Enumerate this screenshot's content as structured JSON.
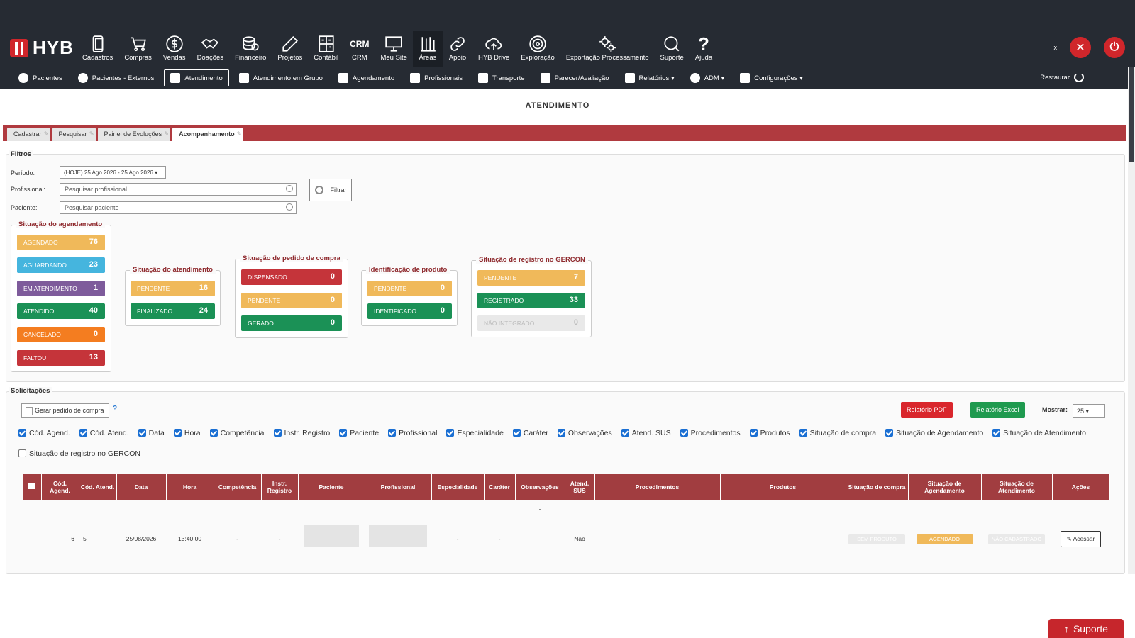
{
  "app": {
    "logo": "HYB"
  },
  "modules": [
    {
      "label": "Cadastros",
      "icon": "phone-icon"
    },
    {
      "label": "Compras",
      "icon": "cart-icon"
    },
    {
      "label": "Vendas",
      "icon": "dollar-icon"
    },
    {
      "label": "Doações",
      "icon": "handshake-icon"
    },
    {
      "label": "Financeiro",
      "icon": "coins-icon"
    },
    {
      "label": "Projetos",
      "icon": "pencil-icon"
    },
    {
      "label": "Contábil",
      "icon": "calculator-icon"
    },
    {
      "label": "CRM",
      "icon": "crm-text"
    },
    {
      "label": "Meu Site",
      "icon": "monitor-icon"
    },
    {
      "label": "Áreas",
      "icon": "areas-icon"
    },
    {
      "label": "Apoio",
      "icon": "link-icon"
    },
    {
      "label": "HYB Drive",
      "icon": "cloud-upload-icon"
    },
    {
      "label": "Exploração",
      "icon": "target-icon"
    },
    {
      "label": "Exportação Processamento",
      "icon": "gears-icon"
    },
    {
      "label": "Suporte",
      "icon": "chat-icon"
    },
    {
      "label": "Ajuda",
      "icon": "question-icon"
    }
  ],
  "top_right": {
    "tiny": "x"
  },
  "subnav": [
    {
      "label": "Pacientes"
    },
    {
      "label": "Pacientes - Externos"
    },
    {
      "label": "Atendimento",
      "active": true
    },
    {
      "label": "Atendimento em Grupo"
    },
    {
      "label": "Agendamento"
    },
    {
      "label": "Profissionais"
    },
    {
      "label": "Transporte"
    },
    {
      "label": "Parecer/Avaliação"
    },
    {
      "label": "Relatórios ▾"
    },
    {
      "label": "ADM ▾"
    },
    {
      "label": "Configurações ▾"
    }
  ],
  "restore": "Restaurar",
  "page_title": "ATENDIMENTO",
  "tabs": [
    "Cadastrar",
    "Pesquisar",
    "Painel de Evoluções",
    "Acompanhamento"
  ],
  "filters": {
    "legend": "Filtros",
    "periodo_label": "Período:",
    "periodo_value": "(HOJE) 25 Ago 2026 - 25 Ago 2026 ▾",
    "profissional_label": "Profissional:",
    "profissional_placeholder": "Pesquisar profissional",
    "paciente_label": "Paciente:",
    "paciente_placeholder": "Pesquisar paciente",
    "filtrar": "Filtrar"
  },
  "situacao_agendamento": {
    "title": "Situação do agendamento",
    "items": [
      {
        "label": "AGENDADO",
        "count": "76",
        "color": "#f0b95a"
      },
      {
        "label": "AGUARDANDO",
        "count": "23",
        "color": "#45b5de"
      },
      {
        "label": "EM ATENDIMENTO",
        "count": "1",
        "color": "#7e5b9b"
      },
      {
        "label": "ATENDIDO",
        "count": "40",
        "color": "#1b9156"
      },
      {
        "label": "CANCELADO",
        "count": "0",
        "color": "#f47d20"
      },
      {
        "label": "FALTOU",
        "count": "13",
        "color": "#c5343a"
      }
    ]
  },
  "situacao_atendimento": {
    "title": "Situação do atendimento",
    "items": [
      {
        "label": "PENDENTE",
        "count": "16"
      },
      {
        "label": "FINALIZADO",
        "count": "24"
      }
    ]
  },
  "situacao_pedido": {
    "title": "Situação de pedido de compra",
    "items": [
      {
        "label": "DISPENSADO",
        "count": "0"
      },
      {
        "label": "PENDENTE",
        "count": "0"
      },
      {
        "label": "GERADO",
        "count": "0"
      }
    ]
  },
  "identificacao_produto": {
    "title": "Identificação de produto",
    "items": [
      {
        "label": "PENDENTE",
        "count": "0"
      },
      {
        "label": "IDENTIFICADO",
        "count": "0"
      }
    ]
  },
  "situacao_gercon": {
    "title": "Situação de registro no GERCON",
    "items": [
      {
        "label": "PENDENTE",
        "count": "7"
      },
      {
        "label": "REGISTRADO",
        "count": "33"
      },
      {
        "label": "NÃO INTEGRADO",
        "count": "0"
      }
    ]
  },
  "solicitacoes": {
    "legend": "Solicitações",
    "gerar": "Gerar pedido de compra",
    "help": "?",
    "pdf": "Relatório PDF",
    "excel": "Relatório Excel",
    "mostrar_label": "Mostrar:",
    "mostrar_value": "25 ▾"
  },
  "columns_toggle": [
    {
      "label": "Cód. Agend.",
      "checked": true
    },
    {
      "label": "Cód. Atend.",
      "checked": true
    },
    {
      "label": "Data",
      "checked": true
    },
    {
      "label": "Hora",
      "checked": true
    },
    {
      "label": "Competência",
      "checked": true
    },
    {
      "label": "Instr. Registro",
      "checked": true
    },
    {
      "label": "Paciente",
      "checked": true
    },
    {
      "label": "Profissional",
      "checked": true
    },
    {
      "label": "Especialidade",
      "checked": true
    },
    {
      "label": "Caráter",
      "checked": true
    },
    {
      "label": "Observações",
      "checked": true
    },
    {
      "label": "Atend. SUS",
      "checked": true
    },
    {
      "label": "Procedimentos",
      "checked": true
    },
    {
      "label": "Produtos",
      "checked": true
    },
    {
      "label": "Situação de compra",
      "checked": true
    },
    {
      "label": "Situação de Agendamento",
      "checked": true
    },
    {
      "label": "Situação de Atendimento",
      "checked": true
    },
    {
      "label": "Situação de registro no GERCON",
      "checked": false
    }
  ],
  "table": {
    "headers": [
      "Cód. Agend.",
      "Cód. Atend.",
      "Data",
      "Hora",
      "Competência",
      "Instr. Registro",
      "Paciente",
      "Profissional",
      "Especialidade",
      "Caráter",
      "Observações",
      "Atend. SUS",
      "Procedimentos",
      "Produtos",
      "Situação de compra",
      "Situação de Agendamento",
      "Situação de Atendimento",
      "Ações"
    ],
    "row": {
      "cod_agend": "6",
      "cod_atend": "5",
      "data": "25/08/2026",
      "hora": "13:40:00",
      "competencia": "-",
      "instr": "-",
      "especialidade": "-",
      "carater": "-",
      "observacoes": "-",
      "sus": "Não",
      "sit_compra": "SEM PRODUTO",
      "sit_agend": "AGENDADO",
      "sit_atend": "NÃO CADASTRADO",
      "acao": "Acessar"
    }
  },
  "suporte_button": "Suporte"
}
